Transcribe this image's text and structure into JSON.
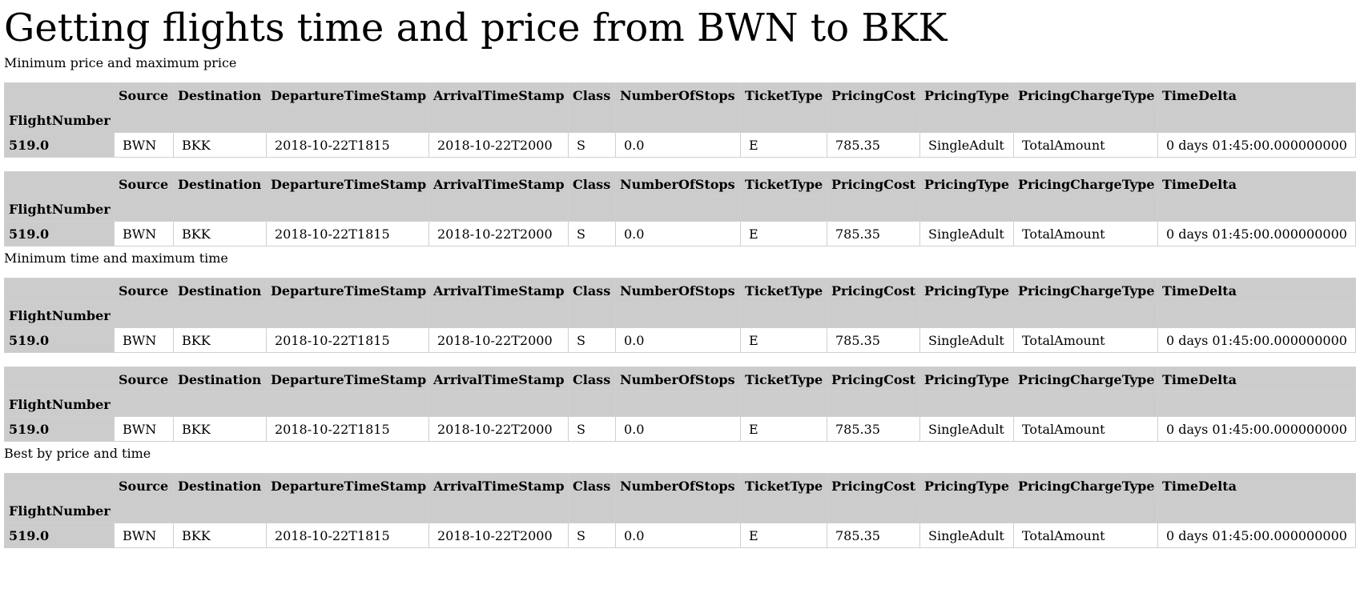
{
  "page": {
    "title": "Getting flights time and price from BWN to BKK"
  },
  "columns": [
    "Source",
    "Destination",
    "DepartureTimeStamp",
    "ArrivalTimeStamp",
    "Class",
    "NumberOfStops",
    "TicketType",
    "PricingCost",
    "PricingType",
    "PricingChargeType",
    "TimeDelta"
  ],
  "index_name": "FlightNumber",
  "sections": [
    {
      "label": "Minimum price and maximum price",
      "tables": [
        {
          "rows": [
            {
              "index": "519.0",
              "cells": [
                "BWN",
                "BKK",
                "2018-10-22T1815",
                "2018-10-22T2000",
                "S",
                "0.0",
                "E",
                "785.35",
                "SingleAdult",
                "TotalAmount",
                "0 days 01:45:00.000000000"
              ]
            }
          ]
        },
        {
          "rows": [
            {
              "index": "519.0",
              "cells": [
                "BWN",
                "BKK",
                "2018-10-22T1815",
                "2018-10-22T2000",
                "S",
                "0.0",
                "E",
                "785.35",
                "SingleAdult",
                "TotalAmount",
                "0 days 01:45:00.000000000"
              ]
            }
          ]
        }
      ]
    },
    {
      "label": "Minimum time and maximum time",
      "tables": [
        {
          "rows": [
            {
              "index": "519.0",
              "cells": [
                "BWN",
                "BKK",
                "2018-10-22T1815",
                "2018-10-22T2000",
                "S",
                "0.0",
                "E",
                "785.35",
                "SingleAdult",
                "TotalAmount",
                "0 days 01:45:00.000000000"
              ]
            }
          ]
        },
        {
          "rows": [
            {
              "index": "519.0",
              "cells": [
                "BWN",
                "BKK",
                "2018-10-22T1815",
                "2018-10-22T2000",
                "S",
                "0.0",
                "E",
                "785.35",
                "SingleAdult",
                "TotalAmount",
                "0 days 01:45:00.000000000"
              ]
            }
          ]
        }
      ]
    },
    {
      "label": "Best by price and time",
      "tables": [
        {
          "rows": [
            {
              "index": "519.0",
              "cells": [
                "BWN",
                "BKK",
                "2018-10-22T1815",
                "2018-10-22T2000",
                "S",
                "0.0",
                "E",
                "785.35",
                "SingleAdult",
                "TotalAmount",
                "0 days 01:45:00.000000000"
              ]
            }
          ]
        }
      ]
    }
  ],
  "colors": {
    "header_bg": "#cccccc",
    "cell_bg": "#ffffff",
    "border": "#d0d0d0"
  }
}
